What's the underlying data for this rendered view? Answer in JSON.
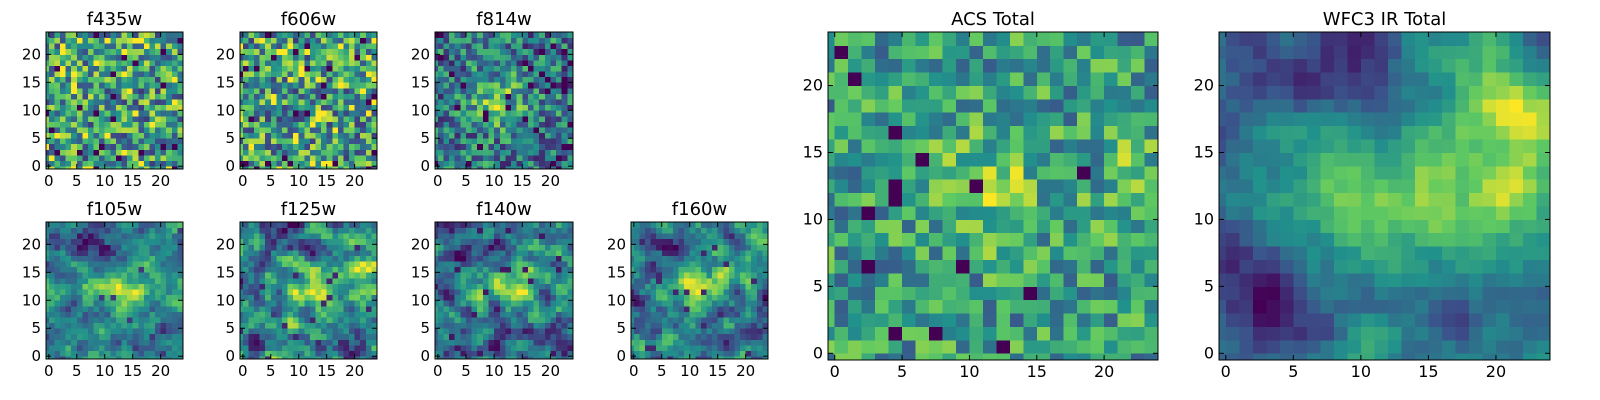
{
  "chart_data": [
    {
      "type": "heatmap",
      "title": "f435w",
      "xticks": [
        "0",
        "5",
        "10",
        "15",
        "20"
      ],
      "yticks": [
        "0",
        "5",
        "10",
        "15",
        "20"
      ],
      "grid_size": 25,
      "style": "noise"
    },
    {
      "type": "heatmap",
      "title": "f606w",
      "xticks": [
        "0",
        "5",
        "10",
        "15",
        "20"
      ],
      "yticks": [
        "0",
        "5",
        "10",
        "15",
        "20"
      ],
      "grid_size": 25,
      "style": "noise"
    },
    {
      "type": "heatmap",
      "title": "f814w",
      "xticks": [
        "0",
        "5",
        "10",
        "15",
        "20"
      ],
      "yticks": [
        "0",
        "5",
        "10",
        "15",
        "20"
      ],
      "grid_size": 25,
      "style": "noisy-blob"
    },
    {
      "type": "heatmap",
      "title": "f105w",
      "xticks": [
        "0",
        "5",
        "10",
        "15",
        "20"
      ],
      "yticks": [
        "0",
        "5",
        "10",
        "15",
        "20"
      ],
      "grid_size": 25,
      "style": "ir-blob"
    },
    {
      "type": "heatmap",
      "title": "f125w",
      "xticks": [
        "0",
        "5",
        "10",
        "15",
        "20"
      ],
      "yticks": [
        "0",
        "5",
        "10",
        "15",
        "20"
      ],
      "grid_size": 25,
      "style": "ir-blob"
    },
    {
      "type": "heatmap",
      "title": "f140w",
      "xticks": [
        "0",
        "5",
        "10",
        "15",
        "20"
      ],
      "yticks": [
        "0",
        "5",
        "10",
        "15",
        "20"
      ],
      "grid_size": 25,
      "style": "ir-blob"
    },
    {
      "type": "heatmap",
      "title": "f160w",
      "xticks": [
        "0",
        "5",
        "10",
        "15",
        "20"
      ],
      "yticks": [
        "0",
        "5",
        "10",
        "15",
        "20"
      ],
      "grid_size": 25,
      "style": "ir-blob"
    },
    {
      "type": "heatmap",
      "title": "ACS Total",
      "xticks": [
        "0",
        "5",
        "10",
        "15",
        "20"
      ],
      "yticks": [
        "0",
        "5",
        "10",
        "15",
        "20"
      ],
      "grid_size": 25,
      "style": "acs-total"
    },
    {
      "type": "heatmap",
      "title": "WFC3 IR Total",
      "xticks": [
        "0",
        "5",
        "10",
        "15",
        "20"
      ],
      "yticks": [
        "0",
        "5",
        "10",
        "15",
        "20"
      ],
      "grid_size": 25,
      "style": "ir-total"
    }
  ],
  "colormap": [
    "#440154",
    "#3b528b",
    "#21918c",
    "#5ec962",
    "#fde725"
  ]
}
